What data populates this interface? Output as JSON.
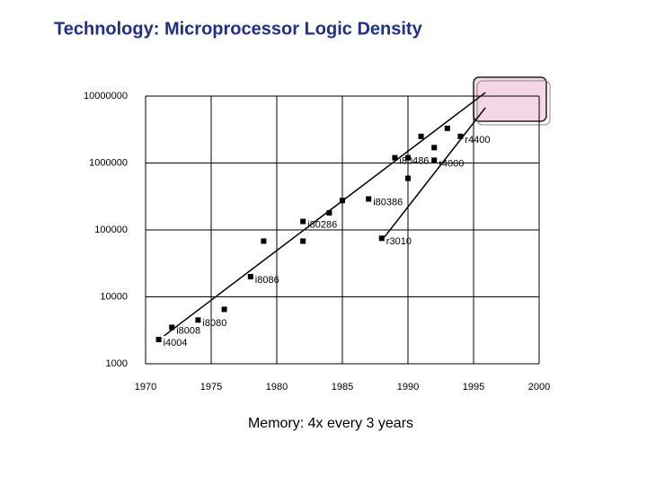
{
  "chart_data": {
    "type": "scatter",
    "title": "Technology: Microprocessor Logic Density",
    "caption": "Memory: 4x every 3 years",
    "log_y": true,
    "grid": true,
    "color": "#000000",
    "title_color": "#1f2f8f",
    "xlim": [
      1970,
      2000
    ],
    "xticks": [
      1970,
      1975,
      1980,
      1985,
      1990,
      1995,
      2000
    ],
    "ylim": [
      1000,
      10000000
    ],
    "yticks": [
      1000,
      10000,
      100000,
      1000000,
      10000000
    ],
    "x": [
      1971,
      1972,
      1974,
      1976,
      1978,
      1979,
      1982,
      1982,
      1984,
      1985,
      1987,
      1988,
      1989,
      1990,
      1990,
      1991,
      1992,
      1992,
      1993,
      1994
    ],
    "values": [
      2300,
      3500,
      4500,
      6500,
      20000,
      68000,
      68000,
      134000,
      180000,
      275000,
      290000,
      75000,
      1200000,
      590000,
      1200000,
      2500000,
      1700000,
      1100000,
      3300000,
      2500000
    ],
    "point_labels": [
      "i4004",
      "i8008",
      "i8080",
      null,
      "i8086",
      null,
      null,
      "i80286",
      null,
      null,
      "i80386",
      "r3010",
      "i80486",
      null,
      null,
      null,
      null,
      "r4000",
      null,
      "r4400"
    ],
    "trend_lines": [
      {
        "x": [
          1971.4,
          1995.9
        ],
        "y": [
          2600,
          11300000
        ]
      },
      {
        "x": [
          1988.2,
          1995.9
        ],
        "y": [
          78000,
          6700000
        ]
      }
    ]
  }
}
